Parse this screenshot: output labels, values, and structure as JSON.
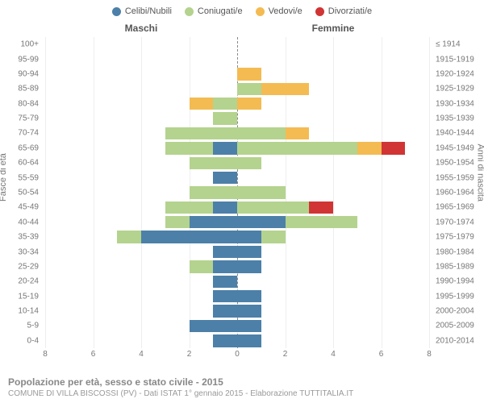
{
  "legend": {
    "items": [
      {
        "label": "Celibi/Nubili",
        "color": "#4c80a8"
      },
      {
        "label": "Coniugati/e",
        "color": "#b4d38e"
      },
      {
        "label": "Vedovi/e",
        "color": "#f4bb52"
      },
      {
        "label": "Divorziati/e",
        "color": "#d13434"
      }
    ]
  },
  "gender": {
    "male": "Maschi",
    "female": "Femmine"
  },
  "axis": {
    "left_label": "Fasce di età",
    "right_label": "Anni di nascita",
    "xmax": 8,
    "xticks": [
      8,
      6,
      4,
      2,
      0,
      2,
      4,
      6,
      8
    ]
  },
  "colors": {
    "celibi": "#4c80a8",
    "coniugati": "#b4d38e",
    "vedovi": "#f4bb52",
    "divorziati": "#d13434",
    "grid": "#eeeeee",
    "center": "#888888",
    "text": "#777777"
  },
  "rows": [
    {
      "age": "100+",
      "birth": "≤ 1914",
      "m": {
        "cel": 0,
        "con": 0,
        "ved": 0,
        "div": 0
      },
      "f": {
        "cel": 0,
        "con": 0,
        "ved": 0,
        "div": 0
      }
    },
    {
      "age": "95-99",
      "birth": "1915-1919",
      "m": {
        "cel": 0,
        "con": 0,
        "ved": 0,
        "div": 0
      },
      "f": {
        "cel": 0,
        "con": 0,
        "ved": 0,
        "div": 0
      }
    },
    {
      "age": "90-94",
      "birth": "1920-1924",
      "m": {
        "cel": 0,
        "con": 0,
        "ved": 0,
        "div": 0
      },
      "f": {
        "cel": 0,
        "con": 0,
        "ved": 1,
        "div": 0
      }
    },
    {
      "age": "85-89",
      "birth": "1925-1929",
      "m": {
        "cel": 0,
        "con": 0,
        "ved": 0,
        "div": 0
      },
      "f": {
        "cel": 0,
        "con": 1,
        "ved": 2,
        "div": 0
      }
    },
    {
      "age": "80-84",
      "birth": "1930-1934",
      "m": {
        "cel": 0,
        "con": 1,
        "ved": 1,
        "div": 0
      },
      "f": {
        "cel": 0,
        "con": 0,
        "ved": 1,
        "div": 0
      }
    },
    {
      "age": "75-79",
      "birth": "1935-1939",
      "m": {
        "cel": 0,
        "con": 1,
        "ved": 0,
        "div": 0
      },
      "f": {
        "cel": 0,
        "con": 0,
        "ved": 0,
        "div": 0
      }
    },
    {
      "age": "70-74",
      "birth": "1940-1944",
      "m": {
        "cel": 0,
        "con": 3,
        "ved": 0,
        "div": 0
      },
      "f": {
        "cel": 0,
        "con": 2,
        "ved": 1,
        "div": 0
      }
    },
    {
      "age": "65-69",
      "birth": "1945-1949",
      "m": {
        "cel": 1,
        "con": 2,
        "ved": 0,
        "div": 0
      },
      "f": {
        "cel": 0,
        "con": 5,
        "ved": 1,
        "div": 1
      }
    },
    {
      "age": "60-64",
      "birth": "1950-1954",
      "m": {
        "cel": 0,
        "con": 2,
        "ved": 0,
        "div": 0
      },
      "f": {
        "cel": 0,
        "con": 1,
        "ved": 0,
        "div": 0
      }
    },
    {
      "age": "55-59",
      "birth": "1955-1959",
      "m": {
        "cel": 1,
        "con": 0,
        "ved": 0,
        "div": 0
      },
      "f": {
        "cel": 0,
        "con": 0,
        "ved": 0,
        "div": 0
      }
    },
    {
      "age": "50-54",
      "birth": "1960-1964",
      "m": {
        "cel": 0,
        "con": 2,
        "ved": 0,
        "div": 0
      },
      "f": {
        "cel": 0,
        "con": 2,
        "ved": 0,
        "div": 0
      }
    },
    {
      "age": "45-49",
      "birth": "1965-1969",
      "m": {
        "cel": 1,
        "con": 2,
        "ved": 0,
        "div": 0
      },
      "f": {
        "cel": 0,
        "con": 3,
        "ved": 0,
        "div": 1
      }
    },
    {
      "age": "40-44",
      "birth": "1970-1974",
      "m": {
        "cel": 2,
        "con": 1,
        "ved": 0,
        "div": 0
      },
      "f": {
        "cel": 2,
        "con": 3,
        "ved": 0,
        "div": 0
      }
    },
    {
      "age": "35-39",
      "birth": "1975-1979",
      "m": {
        "cel": 4,
        "con": 1,
        "ved": 0,
        "div": 0
      },
      "f": {
        "cel": 1,
        "con": 1,
        "ved": 0,
        "div": 0
      }
    },
    {
      "age": "30-34",
      "birth": "1980-1984",
      "m": {
        "cel": 1,
        "con": 0,
        "ved": 0,
        "div": 0
      },
      "f": {
        "cel": 1,
        "con": 0,
        "ved": 0,
        "div": 0
      }
    },
    {
      "age": "25-29",
      "birth": "1985-1989",
      "m": {
        "cel": 1,
        "con": 1,
        "ved": 0,
        "div": 0
      },
      "f": {
        "cel": 1,
        "con": 0,
        "ved": 0,
        "div": 0
      }
    },
    {
      "age": "20-24",
      "birth": "1990-1994",
      "m": {
        "cel": 1,
        "con": 0,
        "ved": 0,
        "div": 0
      },
      "f": {
        "cel": 0,
        "con": 0,
        "ved": 0,
        "div": 0
      }
    },
    {
      "age": "15-19",
      "birth": "1995-1999",
      "m": {
        "cel": 1,
        "con": 0,
        "ved": 0,
        "div": 0
      },
      "f": {
        "cel": 1,
        "con": 0,
        "ved": 0,
        "div": 0
      }
    },
    {
      "age": "10-14",
      "birth": "2000-2004",
      "m": {
        "cel": 1,
        "con": 0,
        "ved": 0,
        "div": 0
      },
      "f": {
        "cel": 1,
        "con": 0,
        "ved": 0,
        "div": 0
      }
    },
    {
      "age": "5-9",
      "birth": "2005-2009",
      "m": {
        "cel": 2,
        "con": 0,
        "ved": 0,
        "div": 0
      },
      "f": {
        "cel": 1,
        "con": 0,
        "ved": 0,
        "div": 0
      }
    },
    {
      "age": "0-4",
      "birth": "2010-2014",
      "m": {
        "cel": 1,
        "con": 0,
        "ved": 0,
        "div": 0
      },
      "f": {
        "cel": 1,
        "con": 0,
        "ved": 0,
        "div": 0
      }
    }
  ],
  "footer": {
    "title": "Popolazione per età, sesso e stato civile - 2015",
    "sub": "COMUNE DI VILLA BISCOSSI (PV) - Dati ISTAT 1° gennaio 2015 - Elaborazione TUTTITALIA.IT"
  }
}
